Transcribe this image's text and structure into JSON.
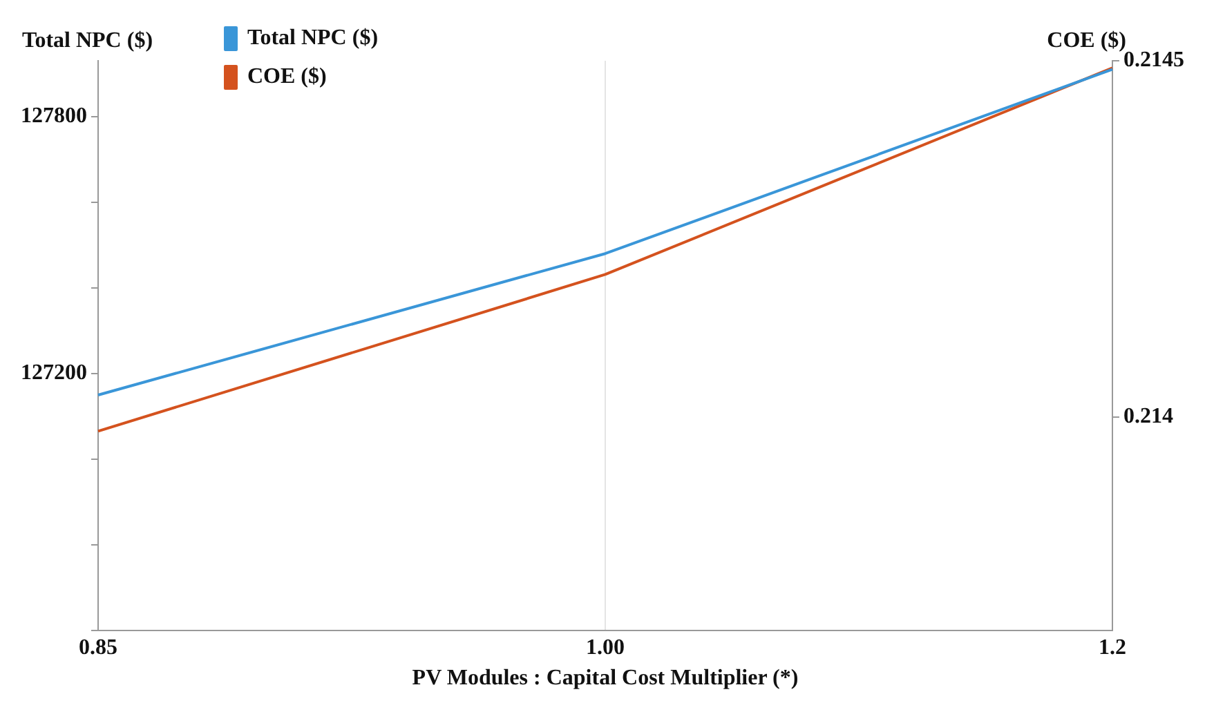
{
  "chart_data": {
    "type": "line",
    "xlabel": "PV Modules : Capital Cost Multiplier (*)",
    "ylabel": "Total NPC ($)",
    "y2label": "COE ($)",
    "categories": [
      "0.85",
      "1.00",
      "1.2"
    ],
    "series": [
      {
        "name": "Total NPC ($)",
        "color": "#3a96d8",
        "values": [
          127150,
          127480,
          127910
        ]
      },
      {
        "name": "COE ($)",
        "color": "#d4521e",
        "values": [
          0.21398,
          0.2142,
          0.21449
        ],
        "axis": "y2"
      }
    ],
    "ylim": [
      126600,
      127930
    ],
    "yticks": [
      {
        "value": 126600,
        "label": null
      },
      {
        "value": 126800,
        "label": null
      },
      {
        "value": 127000,
        "label": null
      },
      127200,
      {
        "value": 127400,
        "label": null
      },
      {
        "value": 127600,
        "label": null
      },
      127800
    ],
    "y2lim": [
      0.2137,
      0.2145
    ],
    "y2ticks": [
      0.214,
      0.2145
    ],
    "grid": "x",
    "legend": "top left",
    "marker": "none",
    "line_style": "solid"
  }
}
